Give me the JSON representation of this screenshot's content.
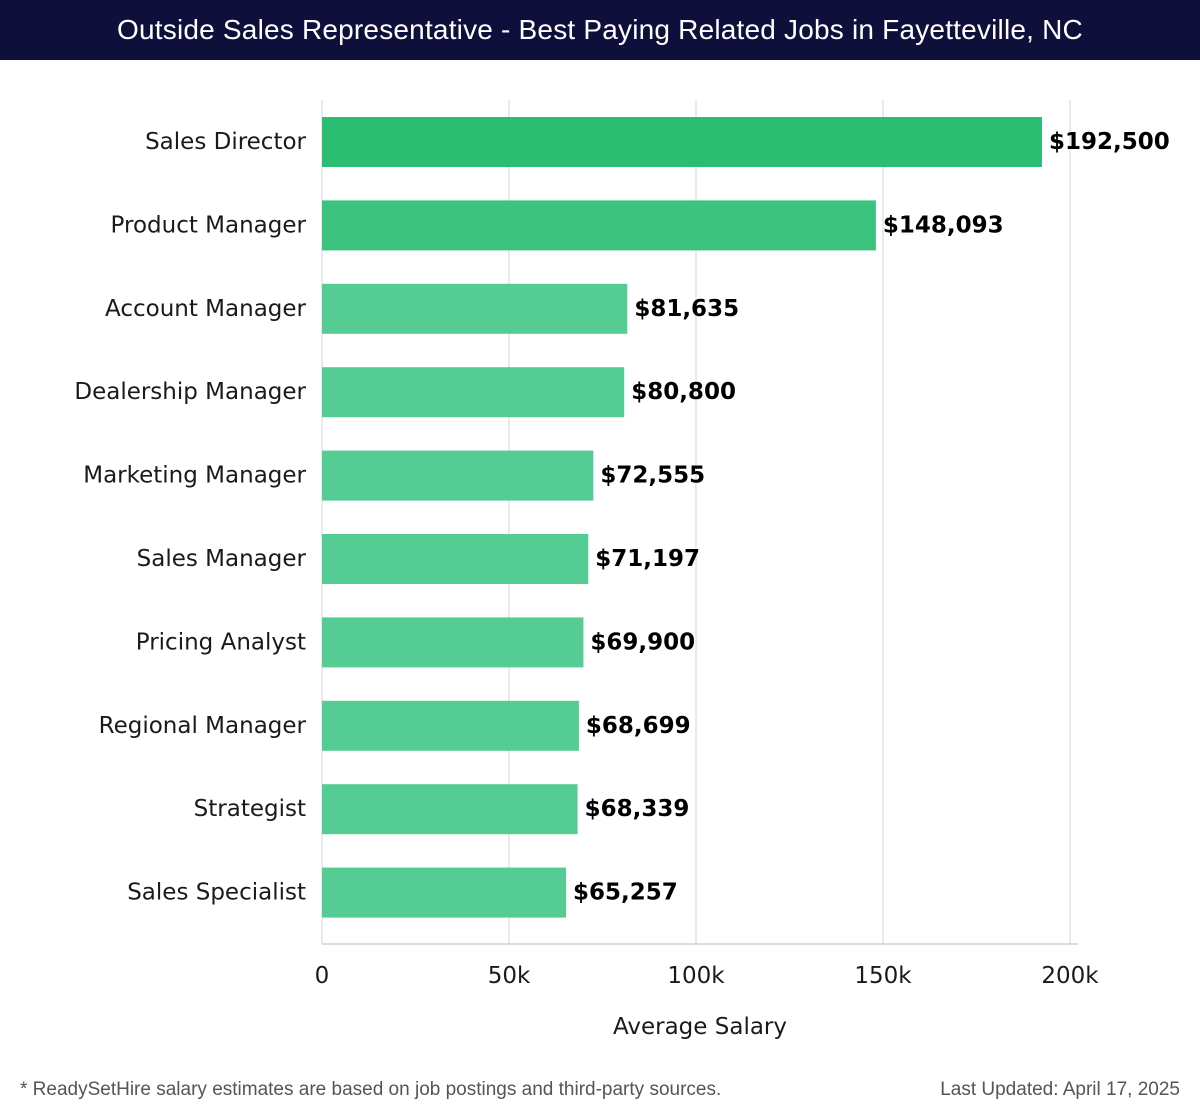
{
  "title": "Outside Sales Representative - Best Paying Related Jobs in Fayetteville, NC",
  "footer": {
    "note": "* ReadySetHire salary estimates are based on job postings and third-party sources.",
    "updated": "Last Updated: April 17, 2025"
  },
  "colors": {
    "header_bg": "#0f0f3c",
    "bar_top": "#2bbd72",
    "bar_second": "#3cc47e",
    "bar_rest": "#55cc93",
    "grid": "#e3e3e3"
  },
  "chart_data": {
    "type": "bar",
    "orientation": "horizontal",
    "categories": [
      "Sales Director",
      "Product Manager",
      "Account Manager",
      "Dealership Manager",
      "Marketing Manager",
      "Sales Manager",
      "Pricing Analyst",
      "Regional Manager",
      "Strategist",
      "Sales Specialist"
    ],
    "values": [
      192500,
      148093,
      81635,
      80800,
      72555,
      71197,
      69900,
      68699,
      68339,
      65257
    ],
    "value_labels": [
      "$192,500",
      "$148,093",
      "$81,635",
      "$80,800",
      "$72,555",
      "$71,197",
      "$69,900",
      "$68,699",
      "$68,339",
      "$65,257"
    ],
    "xlabel": "Average Salary",
    "ylabel": "",
    "xlim": [
      0,
      200000
    ],
    "xticks": [
      0,
      50000,
      100000,
      150000,
      200000
    ],
    "xtick_labels": [
      "0",
      "50k",
      "100k",
      "150k",
      "200k"
    ],
    "grid": true
  }
}
